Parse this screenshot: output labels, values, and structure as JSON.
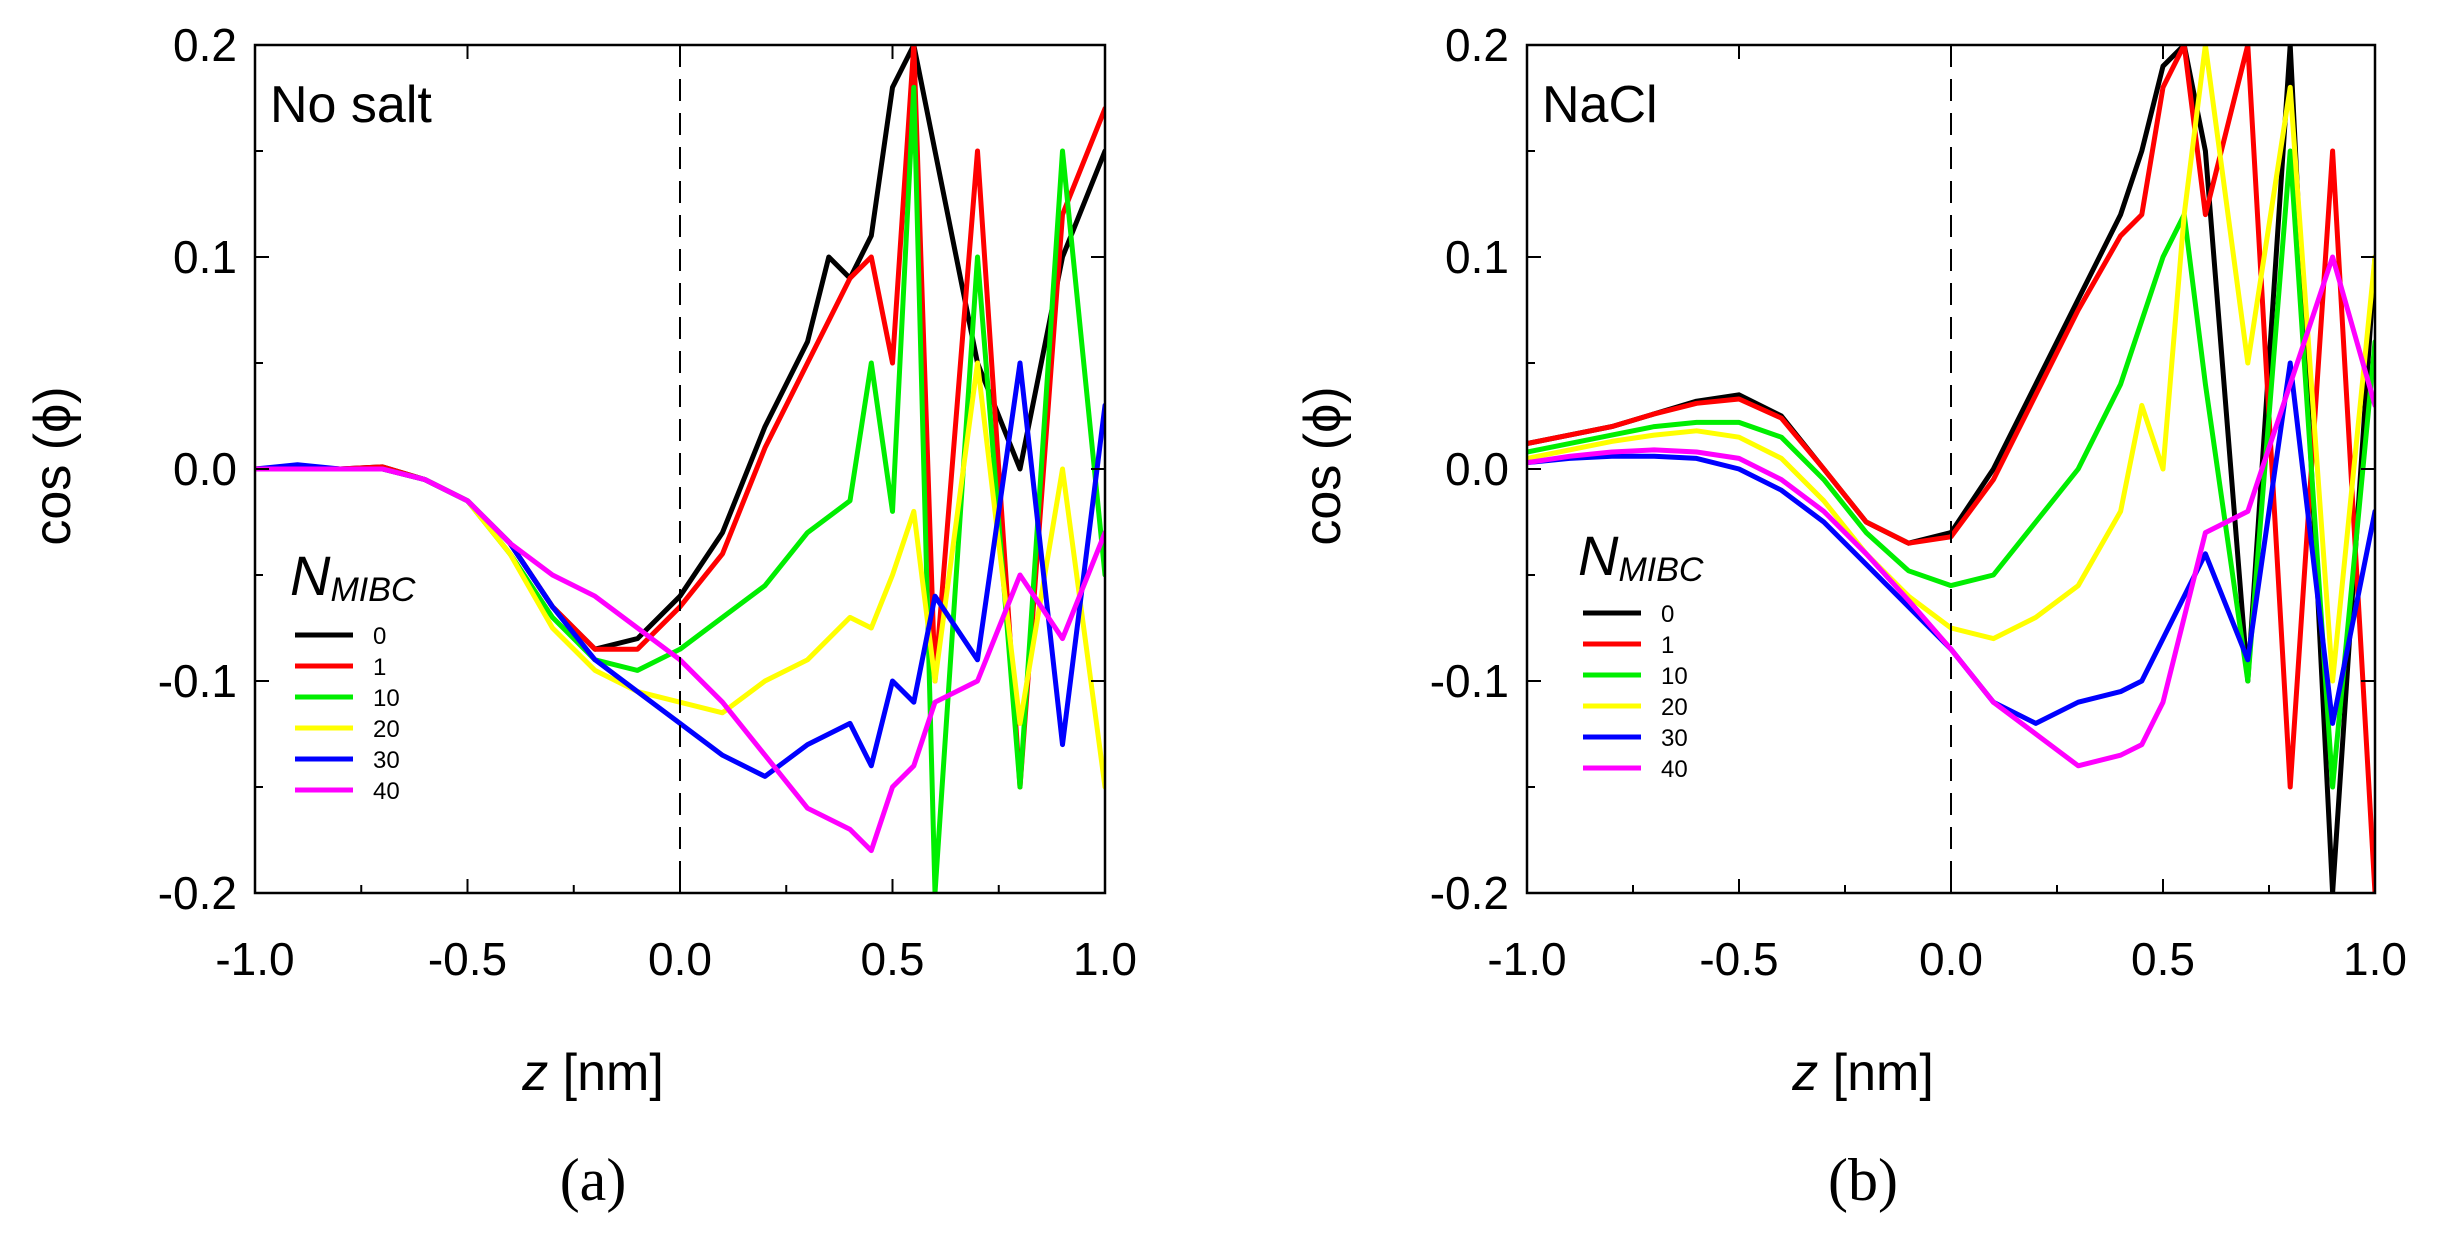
{
  "chart_data": [
    {
      "type": "line",
      "panel_label": "(a)",
      "annotation": "No salt",
      "xlabel_var": "z",
      "xlabel_unit": " [nm]",
      "ylabel": "cos (ϕ)",
      "xlim": [
        -1.0,
        1.0
      ],
      "ylim": [
        -0.2,
        0.2
      ],
      "xticks": [
        "-1.0",
        "-0.5",
        "0.0",
        "0.5",
        "1.0"
      ],
      "yticks": [
        "-0.2",
        "-0.1",
        "0.0",
        "0.1",
        "0.2"
      ],
      "legend_title": "N",
      "legend_sub": "MIBC",
      "series": [
        {
          "name": "0",
          "color": "#000000",
          "x": [
            -1.0,
            -0.9,
            -0.8,
            -0.7,
            -0.6,
            -0.5,
            -0.4,
            -0.3,
            -0.2,
            -0.1,
            0.0,
            0.1,
            0.2,
            0.3,
            0.35,
            0.4,
            0.45,
            0.5,
            0.55,
            0.6,
            0.7,
            0.8,
            0.9,
            1.0
          ],
          "y": [
            0.0,
            0.001,
            0.0,
            0.001,
            -0.005,
            -0.015,
            -0.035,
            -0.065,
            -0.085,
            -0.08,
            -0.06,
            -0.03,
            0.02,
            0.06,
            0.1,
            0.09,
            0.11,
            0.18,
            0.2,
            0.15,
            0.05,
            0.0,
            0.1,
            0.15
          ]
        },
        {
          "name": "1",
          "color": "#ff0000",
          "x": [
            -1.0,
            -0.9,
            -0.8,
            -0.7,
            -0.6,
            -0.5,
            -0.4,
            -0.3,
            -0.2,
            -0.1,
            0.0,
            0.1,
            0.2,
            0.3,
            0.35,
            0.4,
            0.45,
            0.5,
            0.55,
            0.6,
            0.7,
            0.8,
            0.9,
            1.0
          ],
          "y": [
            0.0,
            0.001,
            0.0,
            0.001,
            -0.005,
            -0.015,
            -0.035,
            -0.065,
            -0.085,
            -0.085,
            -0.065,
            -0.04,
            0.01,
            0.05,
            0.07,
            0.09,
            0.1,
            0.05,
            0.2,
            -0.1,
            0.15,
            -0.15,
            0.12,
            0.17
          ]
        },
        {
          "name": "10",
          "color": "#00ee00",
          "x": [
            -1.0,
            -0.9,
            -0.8,
            -0.7,
            -0.6,
            -0.5,
            -0.4,
            -0.3,
            -0.2,
            -0.1,
            0.0,
            0.1,
            0.2,
            0.3,
            0.4,
            0.45,
            0.5,
            0.55,
            0.6,
            0.7,
            0.8,
            0.9,
            1.0
          ],
          "y": [
            0.0,
            0.0,
            0.0,
            0.0,
            -0.005,
            -0.015,
            -0.04,
            -0.07,
            -0.09,
            -0.095,
            -0.085,
            -0.07,
            -0.055,
            -0.03,
            -0.015,
            0.05,
            -0.02,
            0.18,
            -0.2,
            0.1,
            -0.15,
            0.15,
            -0.05
          ]
        },
        {
          "name": "20",
          "color": "#ffff00",
          "x": [
            -1.0,
            -0.9,
            -0.8,
            -0.7,
            -0.6,
            -0.5,
            -0.4,
            -0.3,
            -0.2,
            -0.1,
            0.0,
            0.1,
            0.2,
            0.3,
            0.4,
            0.45,
            0.5,
            0.55,
            0.6,
            0.7,
            0.8,
            0.9,
            1.0
          ],
          "y": [
            0.0,
            0.0,
            0.0,
            0.0,
            -0.005,
            -0.015,
            -0.04,
            -0.075,
            -0.095,
            -0.105,
            -0.11,
            -0.115,
            -0.1,
            -0.09,
            -0.07,
            -0.075,
            -0.05,
            -0.02,
            -0.1,
            0.05,
            -0.12,
            0.0,
            -0.15
          ]
        },
        {
          "name": "30",
          "color": "#0000ff",
          "x": [
            -1.0,
            -0.9,
            -0.8,
            -0.7,
            -0.6,
            -0.5,
            -0.4,
            -0.3,
            -0.2,
            -0.1,
            0.0,
            0.1,
            0.2,
            0.3,
            0.4,
            0.45,
            0.5,
            0.55,
            0.6,
            0.7,
            0.8,
            0.9,
            1.0
          ],
          "y": [
            0.0,
            0.002,
            0.0,
            0.0,
            -0.005,
            -0.015,
            -0.035,
            -0.065,
            -0.09,
            -0.105,
            -0.12,
            -0.135,
            -0.145,
            -0.13,
            -0.12,
            -0.14,
            -0.1,
            -0.11,
            -0.06,
            -0.09,
            0.05,
            -0.13,
            0.03
          ]
        },
        {
          "name": "40",
          "color": "#ff00ff",
          "x": [
            -1.0,
            -0.9,
            -0.8,
            -0.7,
            -0.6,
            -0.5,
            -0.4,
            -0.3,
            -0.2,
            -0.1,
            0.0,
            0.1,
            0.2,
            0.3,
            0.4,
            0.45,
            0.5,
            0.55,
            0.6,
            0.7,
            0.8,
            0.9,
            1.0
          ],
          "y": [
            0.0,
            0.0,
            0.0,
            0.0,
            -0.005,
            -0.015,
            -0.035,
            -0.05,
            -0.06,
            -0.075,
            -0.09,
            -0.11,
            -0.135,
            -0.16,
            -0.17,
            -0.18,
            -0.15,
            -0.14,
            -0.11,
            -0.1,
            -0.05,
            -0.08,
            -0.03
          ]
        }
      ]
    },
    {
      "type": "line",
      "panel_label": "(b)",
      "annotation": "NaCl",
      "xlabel_var": "z",
      "xlabel_unit": " [nm]",
      "ylabel": "cos (ϕ)",
      "xlim": [
        -1.0,
        1.0
      ],
      "ylim": [
        -0.2,
        0.2
      ],
      "xticks": [
        "-1.0",
        "-0.5",
        "0.0",
        "0.5",
        "1.0"
      ],
      "yticks": [
        "-0.2",
        "-0.1",
        "0.0",
        "0.1",
        "0.2"
      ],
      "legend_title": "N",
      "legend_sub": "MIBC",
      "series": [
        {
          "name": "0",
          "color": "#000000",
          "x": [
            -1.0,
            -0.9,
            -0.8,
            -0.7,
            -0.6,
            -0.5,
            -0.4,
            -0.3,
            -0.2,
            -0.1,
            0.0,
            0.1,
            0.2,
            0.3,
            0.4,
            0.45,
            0.5,
            0.55,
            0.6,
            0.7,
            0.8,
            0.9,
            1.0
          ],
          "y": [
            0.012,
            0.016,
            0.02,
            0.026,
            0.032,
            0.035,
            0.025,
            0.0,
            -0.025,
            -0.035,
            -0.03,
            0.0,
            0.04,
            0.08,
            0.12,
            0.15,
            0.19,
            0.2,
            0.15,
            -0.1,
            0.2,
            -0.2,
            0.1
          ]
        },
        {
          "name": "1",
          "color": "#ff0000",
          "x": [
            -1.0,
            -0.9,
            -0.8,
            -0.7,
            -0.6,
            -0.5,
            -0.4,
            -0.3,
            -0.2,
            -0.1,
            0.0,
            0.1,
            0.2,
            0.3,
            0.4,
            0.45,
            0.5,
            0.55,
            0.6,
            0.7,
            0.8,
            0.9,
            1.0
          ],
          "y": [
            0.012,
            0.016,
            0.02,
            0.026,
            0.031,
            0.033,
            0.024,
            0.0,
            -0.025,
            -0.035,
            -0.032,
            -0.005,
            0.035,
            0.075,
            0.11,
            0.12,
            0.18,
            0.2,
            0.12,
            0.2,
            -0.15,
            0.15,
            -0.2
          ]
        },
        {
          "name": "10",
          "color": "#00ee00",
          "x": [
            -1.0,
            -0.9,
            -0.8,
            -0.7,
            -0.6,
            -0.5,
            -0.4,
            -0.3,
            -0.2,
            -0.1,
            0.0,
            0.1,
            0.2,
            0.3,
            0.4,
            0.45,
            0.5,
            0.55,
            0.6,
            0.7,
            0.8,
            0.9,
            1.0
          ],
          "y": [
            0.008,
            0.012,
            0.016,
            0.02,
            0.022,
            0.022,
            0.015,
            -0.005,
            -0.03,
            -0.048,
            -0.055,
            -0.05,
            -0.025,
            0.0,
            0.04,
            0.07,
            0.1,
            0.12,
            0.04,
            -0.1,
            0.15,
            -0.15,
            0.06
          ]
        },
        {
          "name": "20",
          "color": "#ffff00",
          "x": [
            -1.0,
            -0.9,
            -0.8,
            -0.7,
            -0.6,
            -0.5,
            -0.4,
            -0.3,
            -0.2,
            -0.1,
            0.0,
            0.1,
            0.2,
            0.3,
            0.4,
            0.45,
            0.5,
            0.55,
            0.6,
            0.7,
            0.8,
            0.9,
            1.0
          ],
          "y": [
            0.005,
            0.009,
            0.013,
            0.016,
            0.018,
            0.015,
            0.005,
            -0.015,
            -0.04,
            -0.06,
            -0.075,
            -0.08,
            -0.07,
            -0.055,
            -0.02,
            0.03,
            0.0,
            0.12,
            0.2,
            0.05,
            0.18,
            -0.1,
            0.1
          ]
        },
        {
          "name": "30",
          "color": "#0000ff",
          "x": [
            -1.0,
            -0.9,
            -0.8,
            -0.7,
            -0.6,
            -0.5,
            -0.4,
            -0.3,
            -0.2,
            -0.1,
            0.0,
            0.1,
            0.2,
            0.3,
            0.4,
            0.45,
            0.5,
            0.55,
            0.6,
            0.7,
            0.8,
            0.9,
            1.0
          ],
          "y": [
            0.003,
            0.005,
            0.006,
            0.006,
            0.005,
            0.0,
            -0.01,
            -0.025,
            -0.045,
            -0.065,
            -0.085,
            -0.11,
            -0.12,
            -0.11,
            -0.105,
            -0.1,
            -0.08,
            -0.06,
            -0.04,
            -0.09,
            0.05,
            -0.12,
            -0.02
          ]
        },
        {
          "name": "40",
          "color": "#ff00ff",
          "x": [
            -1.0,
            -0.9,
            -0.8,
            -0.7,
            -0.6,
            -0.5,
            -0.4,
            -0.3,
            -0.2,
            -0.1,
            0.0,
            0.1,
            0.2,
            0.3,
            0.4,
            0.45,
            0.5,
            0.55,
            0.6,
            0.7,
            0.8,
            0.9,
            1.0
          ],
          "y": [
            0.003,
            0.006,
            0.008,
            0.009,
            0.008,
            0.005,
            -0.005,
            -0.02,
            -0.04,
            -0.062,
            -0.085,
            -0.11,
            -0.125,
            -0.14,
            -0.135,
            -0.13,
            -0.11,
            -0.07,
            -0.03,
            -0.02,
            0.04,
            0.1,
            0.03
          ]
        }
      ]
    }
  ]
}
